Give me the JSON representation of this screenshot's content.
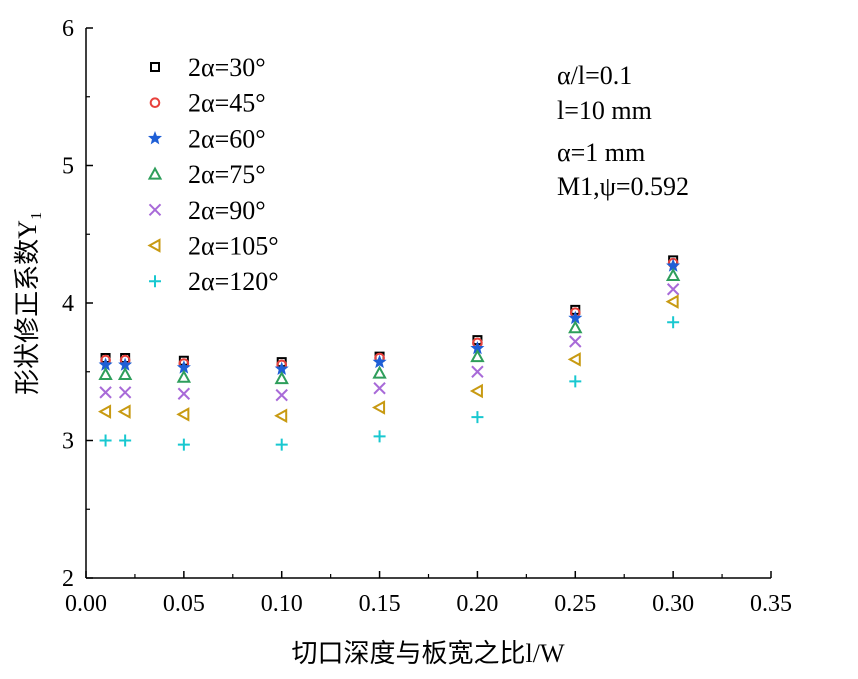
{
  "chart_data": {
    "type": "scatter",
    "xlabel": "切口深度与板宽之比l/W",
    "ylabel": "形状修正系数Y₁",
    "xlim": [
      0,
      0.35
    ],
    "ylim": [
      2,
      6
    ],
    "xticks": [
      "0.00",
      "0.05",
      "0.10",
      "0.15",
      "0.20",
      "0.25",
      "0.30",
      "0.35"
    ],
    "yticks": [
      "2",
      "3",
      "4",
      "5",
      "6"
    ],
    "legend_position": "top-left",
    "x": [
      0.01,
      0.02,
      0.05,
      0.1,
      0.15,
      0.2,
      0.25,
      0.3
    ],
    "series": [
      {
        "name": "2α=30°",
        "marker": "square",
        "color": "#000000",
        "values": [
          3.6,
          3.6,
          3.58,
          3.57,
          3.61,
          3.73,
          3.95,
          4.31
        ]
      },
      {
        "name": "2α=45°",
        "marker": "circle",
        "color": "#e8413c",
        "values": [
          3.585,
          3.585,
          3.56,
          3.55,
          3.6,
          3.71,
          3.93,
          4.29
        ]
      },
      {
        "name": "2α=60°",
        "marker": "star",
        "color": "#1f5fd6",
        "values": [
          3.55,
          3.55,
          3.53,
          3.52,
          3.57,
          3.67,
          3.89,
          4.27
        ]
      },
      {
        "name": "2α=75°",
        "marker": "triangle-up",
        "color": "#2e9e5b",
        "values": [
          3.48,
          3.48,
          3.46,
          3.45,
          3.49,
          3.61,
          3.82,
          4.2
        ]
      },
      {
        "name": "2α=90°",
        "marker": "x",
        "color": "#a86ad8",
        "values": [
          3.35,
          3.35,
          3.34,
          3.33,
          3.38,
          3.5,
          3.72,
          4.1
        ]
      },
      {
        "name": "2α=105°",
        "marker": "triangle-left",
        "color": "#c89a12",
        "values": [
          3.21,
          3.21,
          3.19,
          3.18,
          3.24,
          3.36,
          3.59,
          4.01
        ]
      },
      {
        "name": "2α=120°",
        "marker": "plus",
        "color": "#18c8d0",
        "values": [
          3.0,
          3.0,
          2.97,
          2.97,
          3.03,
          3.17,
          3.43,
          3.86
        ]
      }
    ],
    "annotations": [
      "α/l=0.1",
      "l=10 mm",
      "α=1 mm",
      "M1,ψ=0.592"
    ]
  }
}
